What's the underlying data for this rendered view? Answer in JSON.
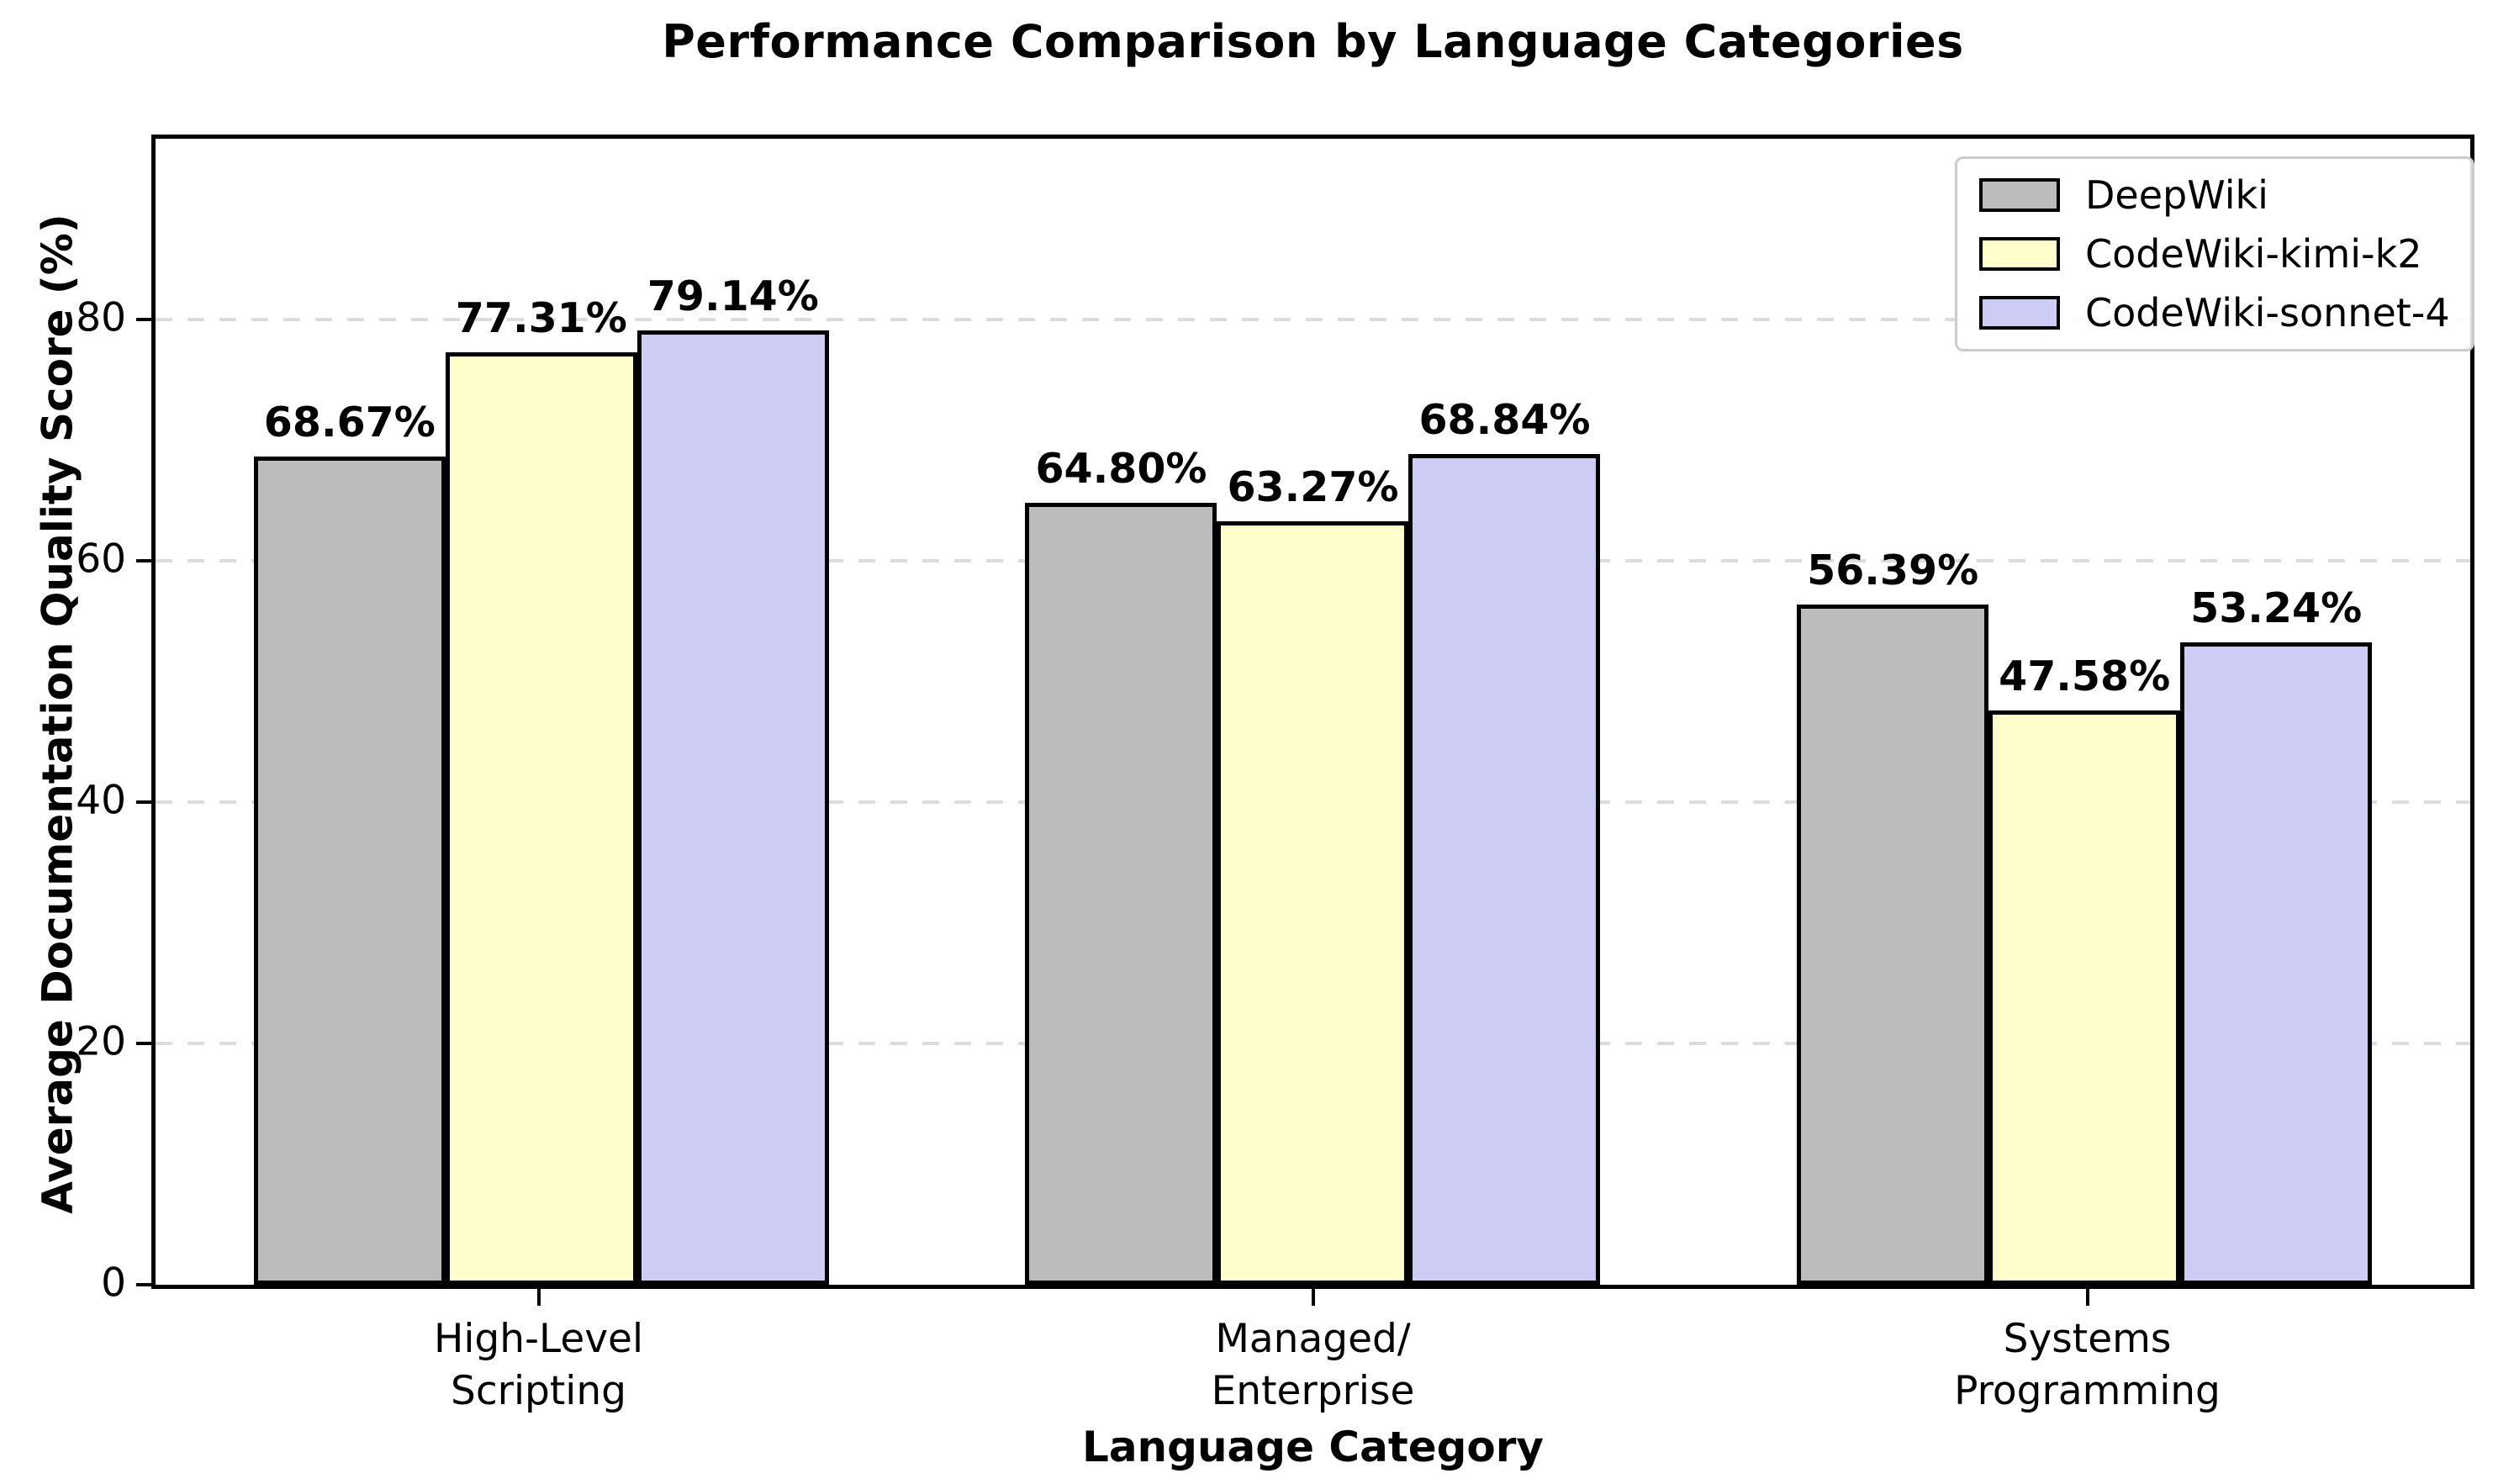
{
  "chart_data": {
    "type": "bar",
    "title": "Performance Comparison by Language Categories",
    "xlabel": "Language Category",
    "ylabel": "Average Documentation Quality Score (%)",
    "categories": [
      "High-Level\nScripting",
      "Managed/\nEnterprise",
      "Systems\nProgramming"
    ],
    "series": [
      {
        "name": "DeepWiki",
        "color": "#bcbcbc",
        "values": [
          68.67,
          64.8,
          56.39
        ],
        "labels": [
          "68.67%",
          "64.80%",
          "56.39%"
        ]
      },
      {
        "name": "CodeWiki-kimi-k2",
        "color": "#ffffcc",
        "values": [
          77.31,
          63.27,
          47.58
        ],
        "labels": [
          "77.31%",
          "63.27%",
          "47.58%"
        ]
      },
      {
        "name": "CodeWiki-sonnet-4",
        "color": "#ccccf5",
        "values": [
          79.14,
          68.84,
          53.24
        ],
        "labels": [
          "79.14%",
          "68.84%",
          "53.24%"
        ]
      }
    ],
    "yticks": [
      0,
      20,
      40,
      60,
      80
    ],
    "ytick_labels": [
      "0",
      "20",
      "40",
      "60",
      "80"
    ],
    "ylim": [
      0,
      95
    ],
    "grid": "horizontal-dashed",
    "gridline_color": "#dcdcdc",
    "bar_edge_color": "#000000",
    "legend_position": "upper right",
    "legend_entries": [
      "DeepWiki",
      "CodeWiki-kimi-k2",
      "CodeWiki-sonnet-4"
    ]
  }
}
